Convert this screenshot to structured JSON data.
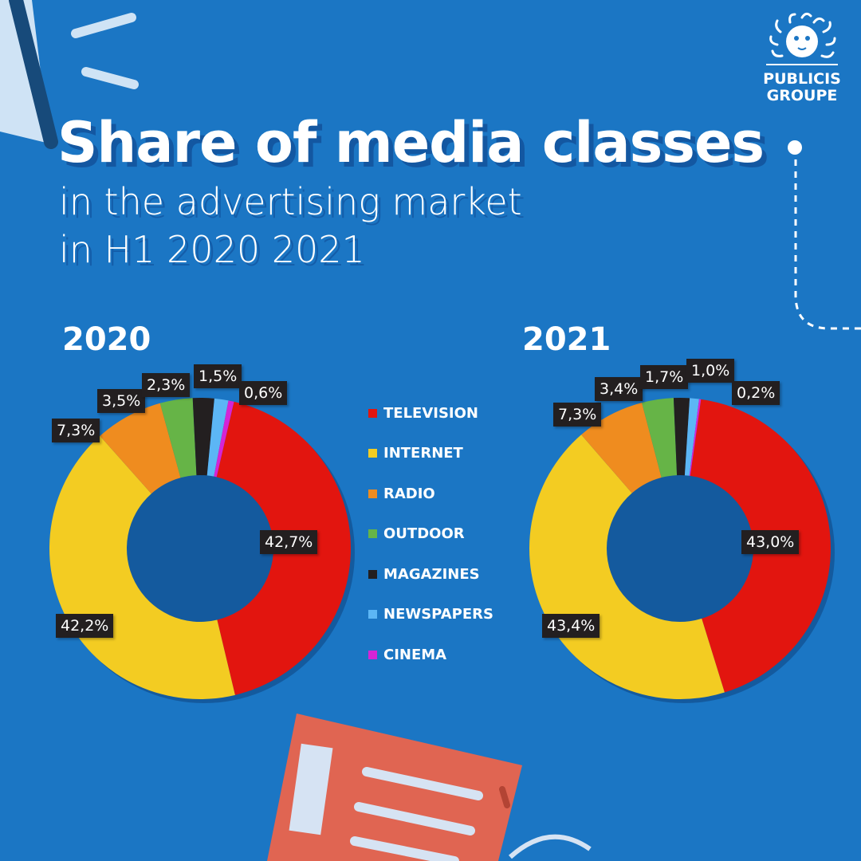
{
  "title": "Share of media classes",
  "subtitle_lines": [
    "in the advertising market",
    "in H1 2020 2021"
  ],
  "logo": {
    "line1": "PUBLICIS",
    "line2": "GROUPE",
    "icon": "lion-head-icon"
  },
  "colors": {
    "background": "#1b76c4",
    "TELEVISION": "#e2150f",
    "INTERNET": "#f3cc22",
    "RADIO": "#ef8c1f",
    "OUTDOOR": "#66b447",
    "MAGAZINES": "#231f20",
    "NEWSPAPERS": "#5cb6f5",
    "CINEMA": "#d624d6"
  },
  "legend": [
    "TELEVISION",
    "INTERNET",
    "RADIO",
    "OUTDOOR",
    "MAGAZINES",
    "NEWSPAPERS",
    "CINEMA"
  ],
  "chart_data": [
    {
      "type": "pie",
      "variant": "donut",
      "title": "2020",
      "categories": [
        "TELEVISION",
        "INTERNET",
        "RADIO",
        "OUTDOOR",
        "MAGAZINES",
        "NEWSPAPERS",
        "CINEMA"
      ],
      "values": [
        42.7,
        42.2,
        7.3,
        3.5,
        2.3,
        1.5,
        0.6
      ],
      "labels": [
        "42,7%",
        "42,2%",
        "7,3%",
        "3,5%",
        "2,3%",
        "1,5%",
        "0,6%"
      ],
      "legend_placement": "center"
    },
    {
      "type": "pie",
      "variant": "donut",
      "title": "2021",
      "categories": [
        "TELEVISION",
        "INTERNET",
        "RADIO",
        "OUTDOOR",
        "MAGAZINES",
        "NEWSPAPERS",
        "CINEMA"
      ],
      "values": [
        43.0,
        43.4,
        7.3,
        3.4,
        1.7,
        1.0,
        0.2
      ],
      "labels": [
        "43,0%",
        "43,4%",
        "7,3%",
        "3,4%",
        "1,7%",
        "1,0%",
        "0,2%"
      ],
      "legend_placement": "center"
    }
  ]
}
